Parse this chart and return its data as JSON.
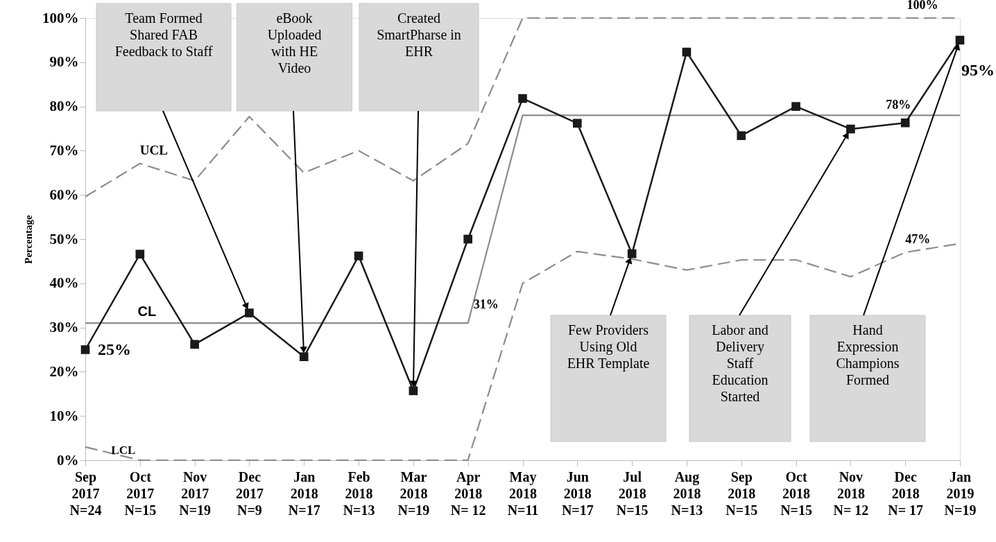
{
  "chart_data": {
    "type": "line",
    "ylabel": "Percentage",
    "categories": [
      "Sep 2017 N=24",
      "Oct 2017 N=15",
      "Nov 2017 N=19",
      "Dec 2017 N=9",
      "Jan 2018 N=17",
      "Feb 2018 N=13",
      "Mar 2018 N=19",
      "Apr 2018 N= 12",
      "May 2018 N=11",
      "Jun 2018 N=17",
      "Jul 2018 N=15",
      "Aug 2018 N=13",
      "Sep 2018 N=15",
      "Oct 2018 N=15",
      "Nov 2018 N= 12",
      "Dec 2018 N= 17",
      "Jan 2019 N=19"
    ],
    "series": [
      {
        "name": "UCL",
        "color": "#8c8c8c",
        "line_style": "dashed",
        "marker": "none",
        "values": [
          59.6,
          67.1,
          63.2,
          77.7,
          65,
          70,
          63.2,
          71.6,
          100,
          100,
          100,
          100,
          100,
          100,
          100,
          100,
          100
        ]
      },
      {
        "name": "LCL",
        "color": "#8c8c8c",
        "line_style": "dashed",
        "marker": "none",
        "values": [
          3,
          0,
          0,
          0,
          0,
          0,
          0,
          0,
          40,
          47.2,
          45.5,
          43,
          45.3,
          45.3,
          41.5,
          47,
          49
        ]
      },
      {
        "name": "CL",
        "color": "#8c8c8c",
        "line_style": "solid",
        "marker": "none",
        "values": [
          31,
          31,
          31,
          31,
          31,
          31,
          31,
          31,
          78,
          78,
          78,
          78,
          78,
          78,
          78,
          78,
          78
        ]
      },
      {
        "color": "#1a1a1a",
        "line_style": "solid",
        "marker": "square",
        "values": [
          25,
          46.6,
          26.2,
          33.3,
          23.4,
          46.2,
          15.7,
          50,
          81.8,
          76.2,
          46.7,
          92.3,
          73.4,
          80,
          74.9,
          76.3,
          95
        ]
      }
    ],
    "ylim": [
      0,
      100
    ],
    "yticks": [
      {
        "value": 0,
        "label": "0%"
      },
      {
        "value": 10,
        "label": "10%"
      },
      {
        "value": 20,
        "label": "20%"
      },
      {
        "value": 30,
        "label": "30%"
      },
      {
        "value": 40,
        "label": "40%"
      },
      {
        "value": 50,
        "label": "50%"
      },
      {
        "value": 60,
        "label": "60%"
      },
      {
        "value": 70,
        "label": "70%"
      },
      {
        "value": 80,
        "label": "80%"
      },
      {
        "value": 90,
        "label": "90%"
      },
      {
        "value": 100,
        "label": "100%"
      }
    ],
    "grid": false,
    "annotations": [
      "Team Formed\nShared FAB\nFeedback to Staff",
      "eBook\nUploaded\nwith HE\nVideo",
      "Created\nSmartPharse in\nEHR",
      {
        "text": "Few Providers\nUsing Old\nEHR Template",
        "x": "Jul 2018 N=15",
        "y": 46.7
      },
      {
        "text": "Labor and\nDelivery\nStaff\nEducation\nStarted",
        "x": "Nov 2018 N= 12",
        "y": 74.9
      },
      {
        "text": "Hand\nExpression\nChampions\nFormed",
        "x": "Jan 2019 N=19",
        "y": 95
      },
      {
        "text": "31%",
        "x": "Apr 2018 N= 12",
        "y": 31
      },
      {
        "text": "78%",
        "x": "Dec 2018 N= 17",
        "y": 78
      },
      {
        "text": "47%",
        "x": "Dec 2018 N= 17",
        "y": 47
      },
      {
        "text": "100%",
        "x": "Jan 2019 N=19",
        "y": 100
      },
      {
        "text": "25%",
        "x": "Sep 2017 N=24",
        "y": 25
      },
      {
        "text": "95%",
        "x": "Jan 2019 N=19",
        "y": 95
      }
    ]
  }
}
